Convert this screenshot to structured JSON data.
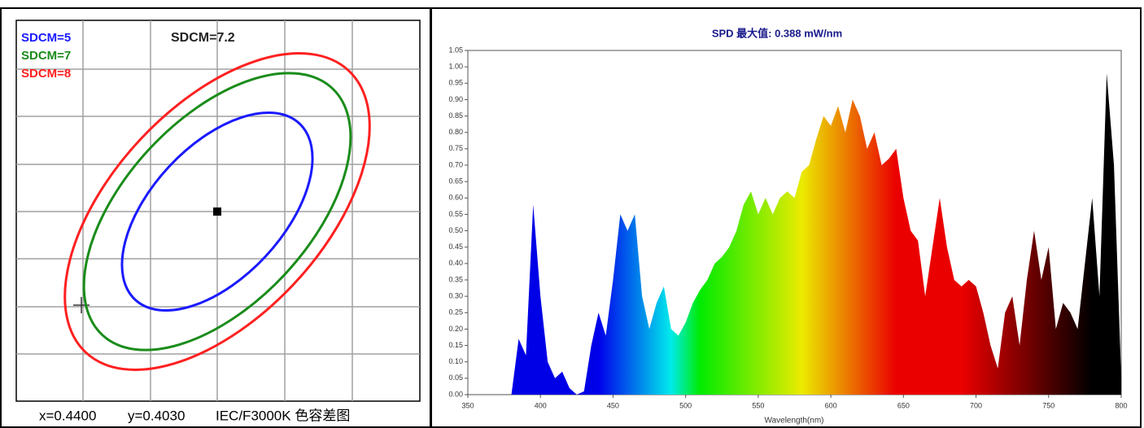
{
  "chart_data": [
    {
      "type": "ellipse",
      "title": "SDCM=7.2",
      "series": [
        {
          "name": "SDCM=5",
          "color": "#1a1aff",
          "value": 5
        },
        {
          "name": "SDCM=7",
          "color": "#1a8c1a",
          "value": 7
        },
        {
          "name": "SDCM=8",
          "color": "#ff2020",
          "value": 8
        }
      ],
      "caption": [
        "x=0.4400",
        "y=0.4030",
        "IEC/F3000K 色容差图"
      ]
    },
    {
      "type": "area",
      "title": "SPD 最大值: 0.388 mW/nm",
      "x_label": "Wavelength(nm)",
      "x": [
        350,
        355,
        360,
        365,
        370,
        375,
        380,
        385,
        390,
        395,
        400,
        405,
        410,
        415,
        420,
        425,
        430,
        435,
        440,
        445,
        450,
        455,
        460,
        465,
        470,
        475,
        480,
        485,
        490,
        495,
        500,
        505,
        510,
        515,
        520,
        525,
        530,
        535,
        540,
        545,
        550,
        555,
        560,
        565,
        570,
        575,
        580,
        585,
        590,
        595,
        600,
        605,
        610,
        615,
        620,
        625,
        630,
        635,
        640,
        645,
        650,
        655,
        660,
        665,
        670,
        675,
        680,
        685,
        690,
        695,
        700,
        705,
        710,
        715,
        720,
        725,
        730,
        735,
        740,
        745,
        750,
        755,
        760,
        765,
        770,
        775,
        780,
        785,
        790,
        795,
        800
      ],
      "values": [
        0,
        0,
        0,
        0,
        0,
        0,
        0,
        0.17,
        0.12,
        0.58,
        0.3,
        0.1,
        0.05,
        0.07,
        0.02,
        0,
        0.01,
        0.15,
        0.25,
        0.18,
        0.35,
        0.55,
        0.5,
        0.55,
        0.3,
        0.2,
        0.28,
        0.33,
        0.2,
        0.18,
        0.22,
        0.28,
        0.32,
        0.35,
        0.4,
        0.42,
        0.45,
        0.5,
        0.58,
        0.62,
        0.55,
        0.6,
        0.55,
        0.6,
        0.62,
        0.6,
        0.68,
        0.7,
        0.78,
        0.85,
        0.82,
        0.88,
        0.8,
        0.9,
        0.85,
        0.75,
        0.8,
        0.7,
        0.72,
        0.75,
        0.6,
        0.5,
        0.47,
        0.3,
        0.45,
        0.6,
        0.45,
        0.35,
        0.33,
        0.35,
        0.33,
        0.25,
        0.15,
        0.08,
        0.25,
        0.3,
        0.15,
        0.35,
        0.5,
        0.35,
        0.45,
        0.2,
        0.28,
        0.25,
        0.2,
        0.4,
        0.6,
        0.3,
        0.98,
        0.7,
        0.05
      ],
      "xlim": [
        350,
        800
      ],
      "xticks": [
        350,
        400,
        450,
        500,
        550,
        600,
        650,
        700,
        750,
        800
      ],
      "ylim": [
        0,
        1.05
      ],
      "yticks": [
        {
          "value": 0,
          "label": "0.00"
        },
        {
          "value": 0.05,
          "label": "0.05"
        },
        {
          "value": 0.1,
          "label": "0.10"
        },
        {
          "value": 0.15,
          "label": "0.15"
        },
        {
          "value": 0.2,
          "label": "0.20"
        },
        {
          "value": 0.25,
          "label": "0.25"
        },
        {
          "value": 0.3,
          "label": "0.30"
        },
        {
          "value": 0.35,
          "label": "0.35"
        },
        {
          "value": 0.4,
          "label": "0.40"
        },
        {
          "value": 0.45,
          "label": "0.45"
        },
        {
          "value": 0.5,
          "label": "0.50"
        },
        {
          "value": 0.55,
          "label": "0.55"
        },
        {
          "value": 0.6,
          "label": "0.60"
        },
        {
          "value": 0.65,
          "label": "0.65"
        },
        {
          "value": 0.7,
          "label": "0.70"
        },
        {
          "value": 0.75,
          "label": "0.75"
        },
        {
          "value": 0.8,
          "label": "0.80"
        },
        {
          "value": 0.85,
          "label": "0.85"
        },
        {
          "value": 0.9,
          "label": "0.90"
        },
        {
          "value": 0.95,
          "label": "0.95"
        },
        {
          "value": 1,
          "label": "1.00"
        },
        {
          "value": 1.05,
          "label": "1.05"
        }
      ],
      "grid": false
    }
  ]
}
